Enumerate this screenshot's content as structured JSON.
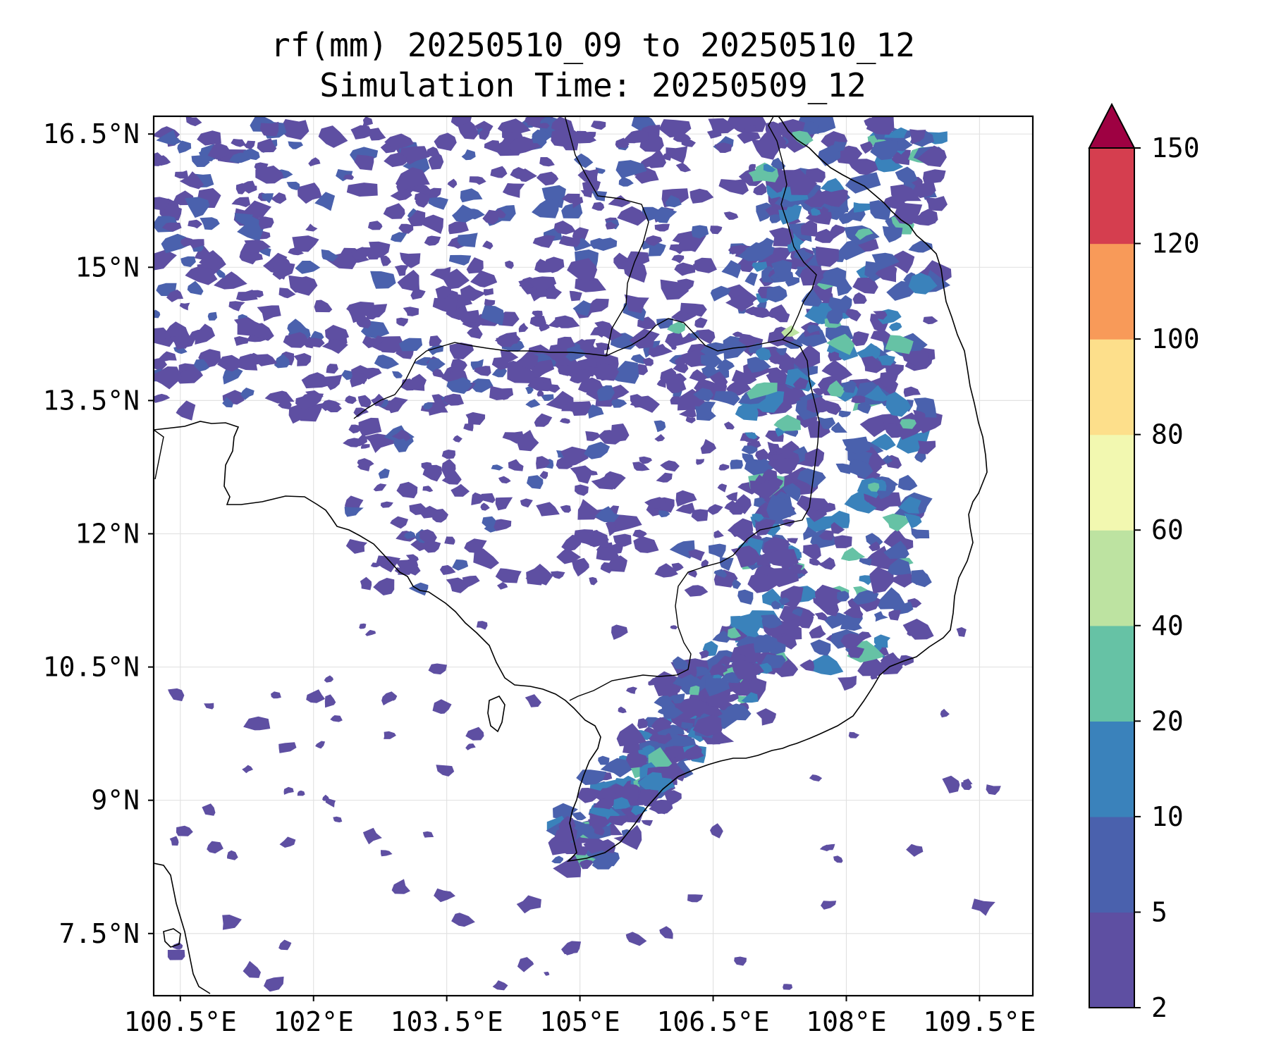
{
  "title": {
    "line1": "rf(mm) 20250510_09 to 20250510_12",
    "line2": "Simulation Time: 20250509_12"
  },
  "map": {
    "lon_range": [
      100.2,
      110.1
    ],
    "lat_range": [
      6.8,
      16.7
    ],
    "lon_ticks": [
      100.5,
      102,
      103.5,
      105,
      106.5,
      108,
      109.5
    ],
    "lat_ticks": [
      7.5,
      9,
      10.5,
      12,
      13.5,
      15,
      16.5
    ],
    "lon_tick_labels": [
      "100.5°E",
      "102°E",
      "103.5°E",
      "105°E",
      "106.5°E",
      "108°E",
      "109.5°E"
    ],
    "lat_tick_labels": [
      "7.5°N",
      "9°N",
      "10.5°N",
      "12°N",
      "13.5°N",
      "15°N",
      "16.5°N"
    ],
    "grid": true
  },
  "colorbar": {
    "levels": [
      2,
      5,
      10,
      20,
      40,
      60,
      80,
      100,
      120,
      150
    ],
    "labels": [
      "2",
      "5",
      "10",
      "20",
      "40",
      "60",
      "80",
      "100",
      "120",
      "150"
    ],
    "colors": [
      "#5e4fa2",
      "#4a61ad",
      "#3a82bb",
      "#66c2a5",
      "#bde3a1",
      "#f2f8b0",
      "#fddf8b",
      "#f89a59",
      "#d53e4f"
    ],
    "extend_color": "#9e0142",
    "extend": "max"
  }
}
